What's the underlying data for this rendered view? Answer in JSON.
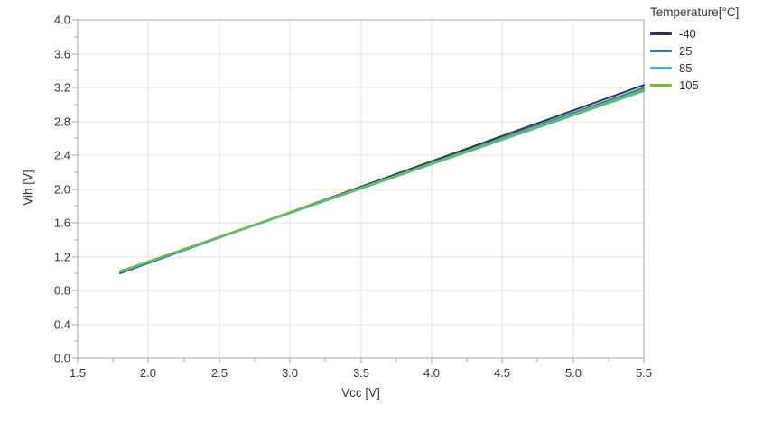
{
  "colors": {
    "background": "#ffffff",
    "plot_border": "#a6a6a6",
    "gridline": "#e2e2e2",
    "tick": "#a6a6a6",
    "text": "#3d3d3d"
  },
  "chart_data": {
    "type": "line",
    "title": "",
    "xlabel": "Vcc [V]",
    "ylabel": "Vih [V]",
    "xlim": [
      1.5,
      5.5
    ],
    "ylim": [
      0.0,
      4.0
    ],
    "x_tick_values": [
      1.5,
      2.0,
      2.5,
      3.0,
      3.5,
      4.0,
      4.5,
      5.0,
      5.5
    ],
    "x_tick_labels": [
      "1.5",
      "2.0",
      "2.5",
      "3.0",
      "3.5",
      "4.0",
      "4.5",
      "5.0",
      "5.5"
    ],
    "x_minor_tick_values": [
      1.75,
      2.25,
      2.75,
      3.25,
      3.75,
      4.25,
      4.75,
      5.25
    ],
    "y_tick_values": [
      0.0,
      0.4,
      0.8,
      1.2,
      1.6,
      2.0,
      2.4,
      2.8,
      3.2,
      3.6,
      4.0
    ],
    "y_tick_labels": [
      "0.0",
      "0.4",
      "0.8",
      "1.2",
      "1.6",
      "2.0",
      "2.4",
      "2.8",
      "3.2",
      "3.6",
      "4.0"
    ],
    "y_minor_tick_values": [
      0.2,
      0.6,
      1.0,
      1.4,
      1.8,
      2.2,
      2.6,
      3.0,
      3.4,
      3.8
    ],
    "grid": true,
    "legend_position": "top-right",
    "legend_title": "Temperature[°C]",
    "series": [
      {
        "name": "-40",
        "color": "#1f3864",
        "x": [
          1.8,
          5.5
        ],
        "y": [
          1.003,
          3.229
        ]
      },
      {
        "name": "25",
        "color": "#2377c0",
        "x": [
          1.8,
          5.5
        ],
        "y": [
          1.01,
          3.195
        ]
      },
      {
        "name": "85",
        "color": "#36b5e8",
        "x": [
          1.8,
          5.5
        ],
        "y": [
          1.02,
          3.158
        ]
      },
      {
        "name": "105",
        "color": "#7cbb2e",
        "x": [
          1.8,
          5.5
        ],
        "y": [
          1.028,
          3.175
        ]
      }
    ]
  }
}
